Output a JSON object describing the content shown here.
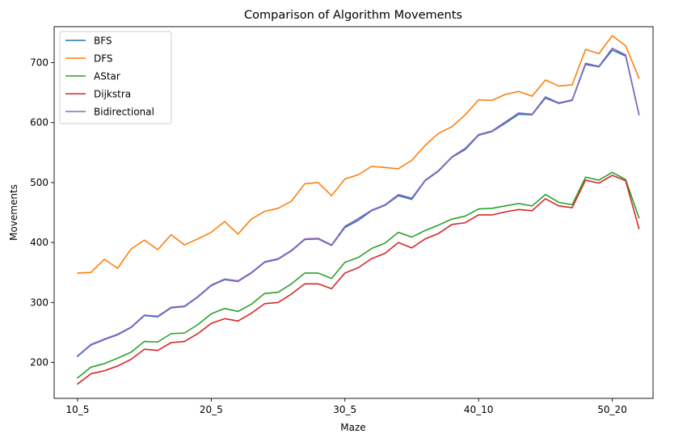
{
  "chart_data": {
    "type": "line",
    "title": "Comparison of Algorithm Movements",
    "xlabel": "Maze",
    "ylabel": "Movements",
    "x_tick_labels": [
      "10_5",
      "20_5",
      "30_5",
      "40_10",
      "50_20"
    ],
    "x_tick_positions": [
      0,
      10,
      20,
      30,
      40
    ],
    "x": [
      0,
      1,
      2,
      3,
      4,
      5,
      6,
      7,
      8,
      9,
      10,
      11,
      12,
      13,
      14,
      15,
      16,
      17,
      18,
      19,
      20,
      21,
      22,
      23,
      24,
      25,
      26,
      27,
      28,
      29,
      30,
      31,
      32,
      33,
      34,
      35,
      36,
      37,
      38,
      39,
      40,
      41,
      42
    ],
    "xlim": [
      -1.75,
      43.05
    ],
    "ylim": [
      140,
      760
    ],
    "y_ticks": [
      200,
      300,
      400,
      500,
      600,
      700
    ],
    "grid": false,
    "legend_position": "top-left",
    "series": [
      {
        "name": "BFS",
        "color": "#1f77b4",
        "values": [
          210,
          229,
          238,
          246,
          258,
          278,
          276,
          291,
          293,
          309,
          328,
          338,
          335,
          349,
          367,
          372,
          386,
          405,
          406,
          395,
          425,
          437,
          453,
          462,
          478,
          472,
          503,
          519,
          542,
          555,
          579,
          585,
          599,
          614,
          613,
          641,
          632,
          637,
          697,
          693,
          721,
          711,
          613
        ]
      },
      {
        "name": "DFS",
        "color": "#ff7f0e",
        "values": [
          349,
          350,
          372,
          357,
          389,
          404,
          388,
          413,
          396,
          406,
          417,
          435,
          414,
          439,
          452,
          457,
          469,
          498,
          500,
          478,
          506,
          513,
          527,
          525,
          523,
          537,
          562,
          582,
          593,
          613,
          638,
          637,
          647,
          652,
          644,
          671,
          661,
          663,
          722,
          715,
          745,
          728,
          674
        ]
      },
      {
        "name": "AStar",
        "color": "#2ca02c",
        "values": [
          174,
          192,
          198,
          207,
          217,
          235,
          234,
          248,
          249,
          263,
          281,
          290,
          285,
          297,
          315,
          317,
          331,
          349,
          349,
          340,
          367,
          375,
          390,
          399,
          417,
          409,
          420,
          429,
          439,
          444,
          456,
          457,
          461,
          465,
          461,
          480,
          467,
          463,
          509,
          504,
          517,
          505,
          441
        ]
      },
      {
        "name": "Dijkstra",
        "color": "#d62728",
        "values": [
          164,
          181,
          186,
          194,
          205,
          222,
          220,
          233,
          235,
          248,
          265,
          273,
          269,
          282,
          298,
          300,
          314,
          331,
          331,
          323,
          349,
          358,
          373,
          382,
          400,
          391,
          406,
          415,
          430,
          433,
          446,
          446,
          451,
          455,
          453,
          473,
          461,
          458,
          504,
          499,
          512,
          503,
          423
        ]
      },
      {
        "name": "Bidirectional",
        "color": "#9467bd",
        "values": [
          211,
          230,
          239,
          247,
          259,
          279,
          277,
          292,
          294,
          310,
          329,
          339,
          336,
          350,
          368,
          373,
          387,
          406,
          407,
          396,
          427,
          440,
          454,
          463,
          480,
          474,
          504,
          520,
          543,
          557,
          580,
          586,
          601,
          616,
          614,
          643,
          633,
          638,
          699,
          694,
          724,
          713,
          614
        ]
      }
    ]
  }
}
